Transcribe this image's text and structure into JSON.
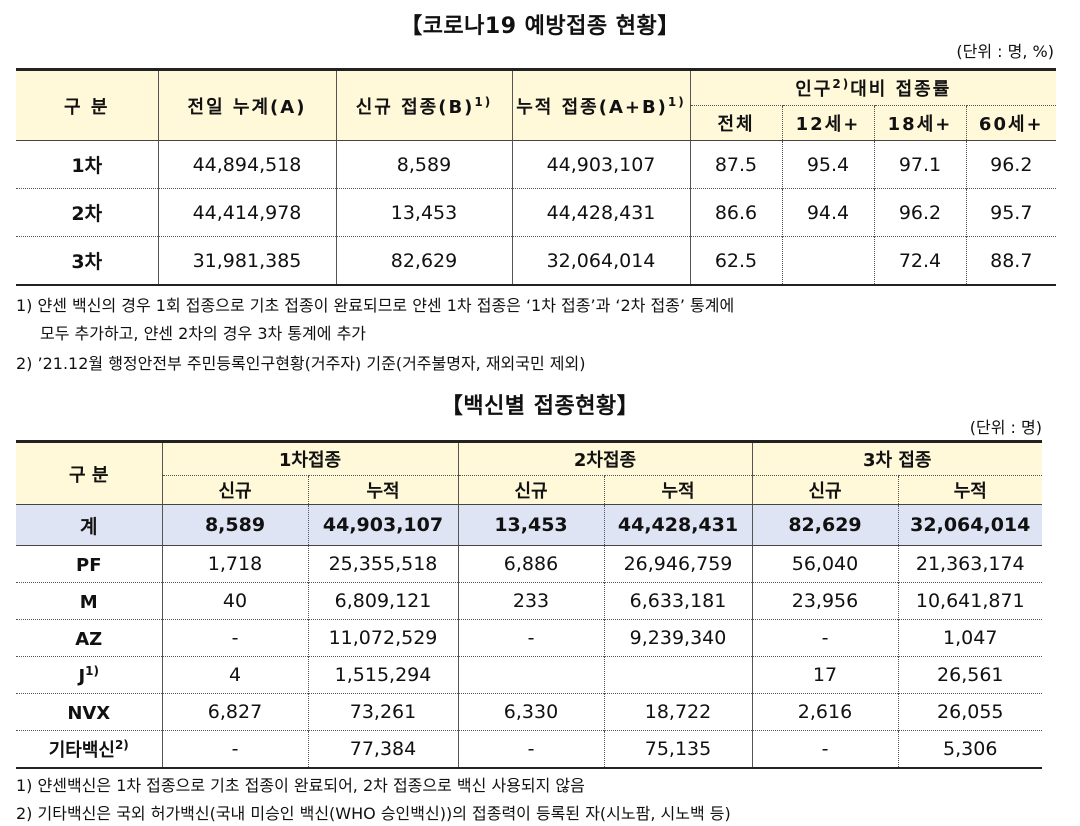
{
  "title1": "【코로나19 예방접종 현황】",
  "unit1": "(단위 : 명, %)",
  "t1": {
    "h_category": "구 분",
    "h_prev": "전일 누계(A)",
    "h_new": "신규 접종(B)",
    "h_new_sup": "1)",
    "h_cum": "누적 접종(A+B)",
    "h_cum_sup": "1)",
    "h_rate": "인구",
    "h_rate_sup": "2)",
    "h_rate_rest": "대비 접종률",
    "h_all": "전체",
    "h_12": "12세+",
    "h_18": "18세+",
    "h_60": "60세+",
    "rows": [
      {
        "label": "1차",
        "prev": "44,894,518",
        "new": "8,589",
        "cum": "44,903,107",
        "all": "87.5",
        "r12": "95.4",
        "r18": "97.1",
        "r60": "96.2"
      },
      {
        "label": "2차",
        "prev": "44,414,978",
        "new": "13,453",
        "cum": "44,428,431",
        "all": "86.6",
        "r12": "94.4",
        "r18": "96.2",
        "r60": "95.7"
      },
      {
        "label": "3차",
        "prev": "31,981,385",
        "new": "82,629",
        "cum": "32,064,014",
        "all": "62.5",
        "r12": "",
        "r18": "72.4",
        "r60": "88.7"
      }
    ]
  },
  "notes1": [
    "1) 얀센 백신의 경우 1회 접종으로 기초 접종이 완료되므로 얀센 1차 접종은 ‘1차 접종’과 ‘2차 접종’ 통계에",
    "모두 추가하고, 얀센 2차의 경우 3차 통계에 추가",
    "2) ’21.12월 행정안전부 주민등록인구현황(거주자) 기준(거주불명자, 재외국민 제외)"
  ],
  "title2": "【백신별 접종현황】",
  "unit2": "(단위 : 명)",
  "t2": {
    "h_category": "구 분",
    "h_d1": "1차접종",
    "h_d2": "2차접종",
    "h_d3": "3차 접종",
    "h_new": "신규",
    "h_cum": "누적",
    "total": {
      "label": "계",
      "d1n": "8,589",
      "d1c": "44,903,107",
      "d2n": "13,453",
      "d2c": "44,428,431",
      "d3n": "82,629",
      "d3c": "32,064,014"
    },
    "rows": [
      {
        "label": "PF",
        "sup": "",
        "d1n": "1,718",
        "d1c": "25,355,518",
        "d2n": "6,886",
        "d2c": "26,946,759",
        "d3n": "56,040",
        "d3c": "21,363,174"
      },
      {
        "label": "M",
        "sup": "",
        "d1n": "40",
        "d1c": "6,809,121",
        "d2n": "233",
        "d2c": "6,633,181",
        "d3n": "23,956",
        "d3c": "10,641,871"
      },
      {
        "label": "AZ",
        "sup": "",
        "d1n": "-",
        "d1c": "11,072,529",
        "d2n": "-",
        "d2c": "9,239,340",
        "d3n": "-",
        "d3c": "1,047"
      },
      {
        "label": "J",
        "sup": "1)",
        "d1n": "4",
        "d1c": "1,515,294",
        "d2n": "",
        "d2c": "",
        "d3n": "17",
        "d3c": "26,561"
      },
      {
        "label": "NVX",
        "sup": "",
        "d1n": "6,827",
        "d1c": "73,261",
        "d2n": "6,330",
        "d2c": "18,722",
        "d3n": "2,616",
        "d3c": "26,055"
      },
      {
        "label": "기타백신",
        "sup": "2)",
        "d1n": "-",
        "d1c": "77,384",
        "d2n": "-",
        "d2c": "75,135",
        "d3n": "-",
        "d3c": "5,306"
      }
    ]
  },
  "notes2": [
    "1) 얀센백신은 1차 접종으로 기초 접종이 완료되어, 2차 접종으로 백신 사용되지 않음",
    "2) 기타백신은 국외 허가백신(국내 미승인 백신(WHO 승인백신))의 접종력이 등록된 자(시노팜, 시노백 등)"
  ]
}
